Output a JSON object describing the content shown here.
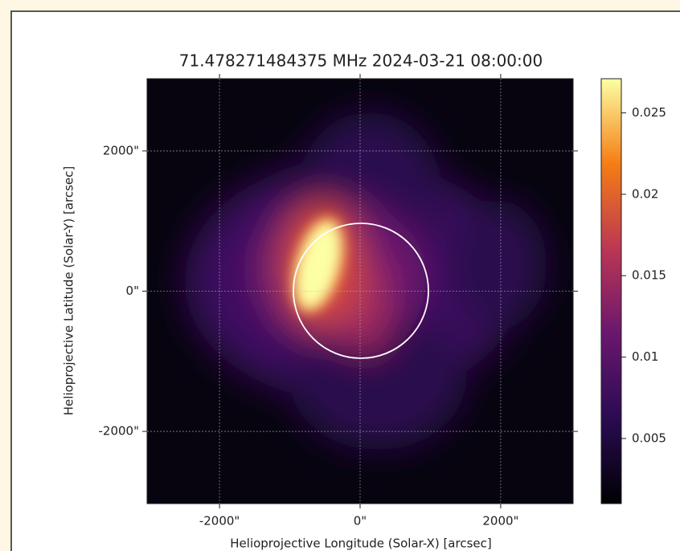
{
  "chart_data": {
    "type": "heatmap",
    "title": "71.478271484375 MHz 2024-03-21 08:00:00",
    "x_label": "Helioprojective Longitude (Solar-X) [arcsec]",
    "y_label": "Helioprojective Latitude (Solar-Y) [arcsec]",
    "xlim": [
      -3030,
      3030
    ],
    "ylim": [
      -3030,
      3030
    ],
    "xticks": [
      {
        "value": -2000,
        "label": "-2000\""
      },
      {
        "value": 0,
        "label": "0\""
      },
      {
        "value": 2000,
        "label": "2000\""
      }
    ],
    "yticks": [
      {
        "value": -2000,
        "label": "-2000\""
      },
      {
        "value": 0,
        "label": "0\""
      },
      {
        "value": 2000,
        "label": "2000\""
      }
    ],
    "colormap": "inferno",
    "grid": true,
    "clim": [
      0.001,
      0.0271
    ],
    "colorbar_ticks": [
      0.005,
      0.01,
      0.015,
      0.02,
      0.025
    ]
  }
}
